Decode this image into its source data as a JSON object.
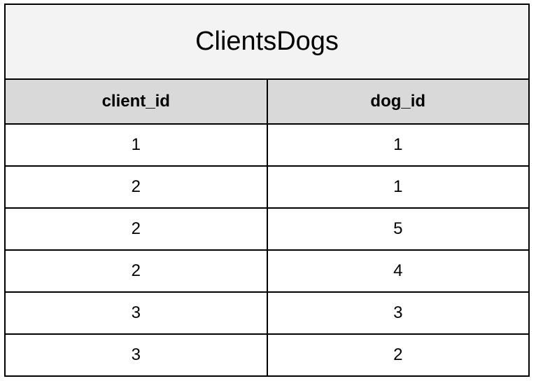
{
  "table": {
    "title": "ClientsDogs",
    "columns": [
      "client_id",
      "dog_id"
    ],
    "rows": [
      [
        "1",
        "1"
      ],
      [
        "2",
        "1"
      ],
      [
        "2",
        "5"
      ],
      [
        "2",
        "4"
      ],
      [
        "3",
        "3"
      ],
      [
        "3",
        "2"
      ]
    ]
  }
}
